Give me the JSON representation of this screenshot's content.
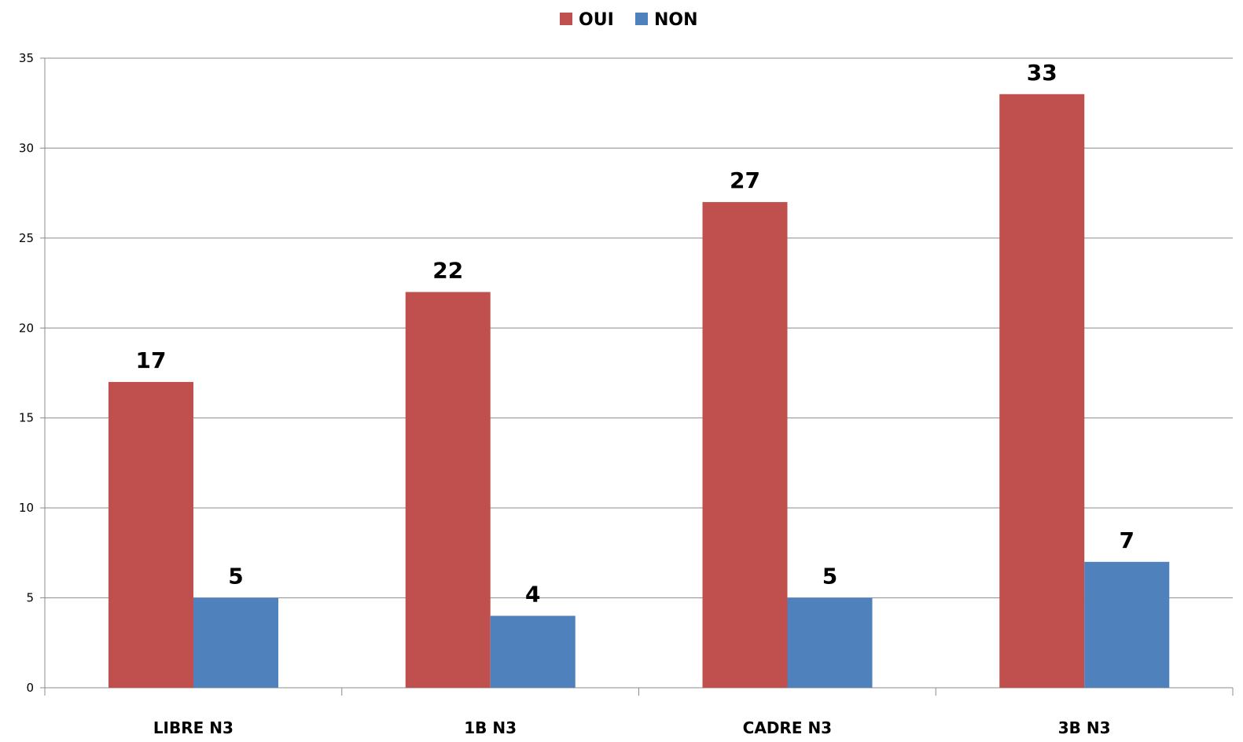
{
  "chart_data": {
    "type": "bar",
    "categories": [
      "LIBRE N3",
      "1B N3",
      "CADRE N3",
      "3B N3"
    ],
    "series": [
      {
        "name": "OUI",
        "values": [
          17,
          22,
          27,
          33
        ],
        "color": "#C0504D"
      },
      {
        "name": "NON",
        "values": [
          5,
          4,
          5,
          7
        ],
        "color": "#4F81BD"
      }
    ],
    "ylim": [
      0,
      35
    ],
    "yticks": [
      0,
      5,
      10,
      15,
      20,
      25,
      30,
      35
    ],
    "grid": true,
    "legend": "top-center",
    "data_labels": true
  }
}
